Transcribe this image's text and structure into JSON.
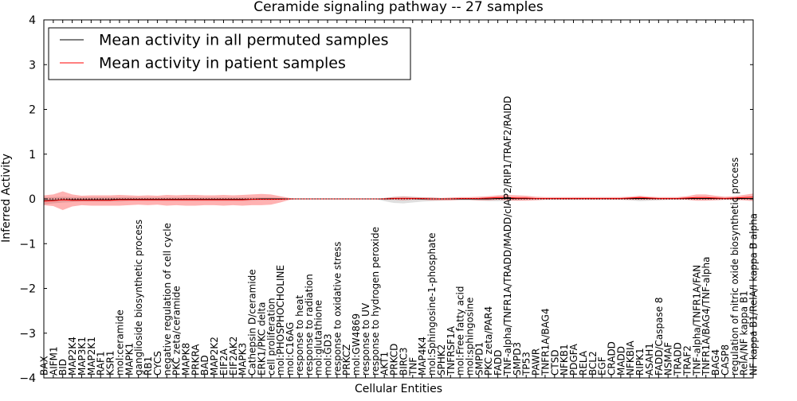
{
  "chart_data": {
    "type": "line",
    "title": "Ceramide signaling pathway -- 27 samples",
    "xlabel": "Cellular Entities",
    "ylabel": "Inferred Activity",
    "ylim": [
      -4,
      4
    ],
    "yticks": [
      4,
      3,
      2,
      1,
      0,
      -1,
      -2,
      -3,
      -4
    ],
    "ytick_labels": [
      "4",
      "3",
      "2",
      "1",
      "0",
      "−1",
      "−2",
      "−3",
      "−4"
    ],
    "legend": {
      "position": "upper-left",
      "entries": [
        {
          "label": "Mean activity in all permuted samples",
          "color": "#000000"
        },
        {
          "label": "Mean activity in patient samples",
          "color": "#ff0000"
        }
      ]
    },
    "categories": [
      "BAX",
      "AIFM1",
      "BID",
      "MAP2K4",
      "MAP3K1",
      "MAP2K1",
      "RAF1",
      "KSR1",
      "mol:ceramide",
      "MAPK1",
      "ganglioside biosynthetic process",
      "RB1",
      "CYCS",
      "negative regulation of cell cycle",
      "PKC zeta/ceramide",
      "MAPK8",
      "PRKRA",
      "BAD",
      "MAP2K2",
      "EIF2A",
      "EIF2AK2",
      "MAPK3",
      "Cathepsin D/ceramide",
      "ERK1/PKC delta",
      "cell proliferation",
      "mol:PHOSPHOCHOLINE",
      "mol:C16AG",
      "response to heat",
      "response to radiation",
      "mol:glutathione",
      "mol:GD3",
      "response to oxidative stress",
      "PRKCZ",
      "mol:GW4869",
      "response to UV",
      "response to hydrogen peroxide",
      "AKT1",
      "PRKCD",
      "BIRC3",
      "TNF",
      "MAP4K4",
      "mol:Sphingosine-1-phosphate",
      "SPHK2",
      "TNFRSF1A",
      "mol:Free fatty acid",
      "mol:sphingosine",
      "SMPD1",
      "PKC zeta/PAR4",
      "FADD",
      "TNF-alpha/TNFR1A/TRADD/MADD/cIAP2/RIP1/TRAF2/RAIDD",
      "SMPD3",
      "TP53",
      "PAWR",
      "TNFR1A/BAG4",
      "CTSD",
      "NFKB1",
      "PDGFA",
      "RELA",
      "BCL2",
      "EGF",
      "CRADD",
      "MADD",
      "NFKBIA",
      "RIPK1",
      "ASAH1",
      "FADD/Caspase 8",
      "NSMAF",
      "TRADD",
      "TRAF2",
      "TNF-alpha/TNFR1A/FAN",
      "TNFR1A/BAG4/TNF-alpha",
      "BAG4",
      "CASP8",
      "regulation of nitric oxide biosynthetic process",
      "RelA/NF kappa B1",
      "NF kappa B1/RelA/I kappa B alpha"
    ],
    "series": [
      {
        "name": "Mean activity in all permuted samples",
        "color": "#000000",
        "values": [
          -0.04,
          -0.03,
          -0.02,
          -0.02,
          -0.02,
          -0.02,
          -0.02,
          -0.02,
          -0.01,
          -0.01,
          -0.01,
          -0.01,
          -0.01,
          -0.01,
          -0.01,
          -0.01,
          -0.01,
          -0.01,
          -0.01,
          -0.01,
          -0.01,
          -0.01,
          -0.01,
          0.0,
          0.0,
          0.0,
          0.0,
          0.0,
          0.0,
          0.0,
          0.0,
          0.0,
          0.0,
          0.0,
          0.0,
          0.0,
          0.0,
          0.01,
          0.01,
          0.01,
          0.0,
          0.0,
          0.0,
          0.0,
          0.0,
          0.0,
          0.0,
          0.0,
          0.01,
          0.01,
          0.01,
          0.01,
          0.01,
          0.01,
          0.01,
          0.01,
          0.01,
          0.01,
          0.01,
          0.01,
          0.01,
          0.01,
          0.01,
          0.01,
          0.01,
          0.01,
          0.01,
          0.01,
          0.01,
          0.01,
          0.01,
          0.01,
          0.01,
          0.01,
          0.01,
          0.01
        ],
        "band_upper": [
          0.04,
          0.04,
          0.05,
          0.04,
          0.04,
          0.04,
          0.04,
          0.04,
          0.04,
          0.04,
          0.03,
          0.03,
          0.03,
          0.03,
          0.03,
          0.03,
          0.03,
          0.03,
          0.03,
          0.03,
          0.03,
          0.03,
          0.03,
          0.03,
          0.03,
          0.02,
          0.01,
          0.0,
          0.0,
          0.0,
          0.0,
          0.0,
          0.0,
          0.0,
          0.0,
          0.0,
          0.02,
          0.05,
          0.06,
          0.05,
          0.04,
          0.03,
          0.02,
          0.02,
          0.02,
          0.02,
          0.02,
          0.03,
          0.03,
          0.03,
          0.03,
          0.02,
          0.02,
          0.02,
          0.02,
          0.02,
          0.02,
          0.02,
          0.02,
          0.02,
          0.02,
          0.02,
          0.02,
          0.02,
          0.02,
          0.02,
          0.02,
          0.02,
          0.02,
          0.02,
          0.02,
          0.03,
          0.03,
          0.02,
          0.02,
          0.02
        ],
        "band_lower": [
          -0.12,
          -0.1,
          -0.08,
          -0.07,
          -0.06,
          -0.06,
          -0.06,
          -0.06,
          -0.06,
          -0.05,
          -0.05,
          -0.05,
          -0.05,
          -0.05,
          -0.05,
          -0.05,
          -0.05,
          -0.05,
          -0.05,
          -0.05,
          -0.05,
          -0.05,
          -0.04,
          -0.03,
          -0.03,
          -0.02,
          -0.01,
          0.0,
          0.0,
          0.0,
          0.0,
          0.0,
          0.0,
          0.0,
          0.0,
          0.0,
          -0.05,
          -0.09,
          -0.1,
          -0.08,
          -0.06,
          -0.05,
          -0.04,
          -0.03,
          -0.03,
          -0.03,
          -0.04,
          -0.05,
          -0.05,
          -0.04,
          -0.03,
          -0.02,
          -0.02,
          -0.02,
          -0.02,
          -0.02,
          -0.02,
          -0.02,
          -0.02,
          -0.02,
          -0.02,
          -0.02,
          -0.03,
          -0.05,
          -0.04,
          -0.03,
          -0.02,
          -0.02,
          -0.02,
          -0.02,
          -0.02,
          -0.02,
          -0.02,
          -0.02,
          -0.02,
          -0.02
        ]
      },
      {
        "name": "Mean activity in patient samples",
        "color": "#ff0000",
        "values": [
          -0.05,
          -0.04,
          -0.02,
          -0.03,
          -0.03,
          -0.03,
          -0.03,
          -0.03,
          -0.02,
          -0.02,
          -0.02,
          -0.02,
          -0.02,
          -0.02,
          -0.02,
          -0.02,
          -0.02,
          -0.02,
          -0.02,
          -0.02,
          -0.02,
          -0.02,
          -0.01,
          -0.01,
          -0.01,
          -0.01,
          0.0,
          0.0,
          0.0,
          0.0,
          0.0,
          0.0,
          0.0,
          0.0,
          0.0,
          0.0,
          0.0,
          0.01,
          0.01,
          0.01,
          0.01,
          0.0,
          0.0,
          0.0,
          0.01,
          0.01,
          0.01,
          0.02,
          0.03,
          0.03,
          0.02,
          0.02,
          0.01,
          0.01,
          0.01,
          0.01,
          0.01,
          0.01,
          0.01,
          0.01,
          0.01,
          0.01,
          0.02,
          0.03,
          0.02,
          0.01,
          0.01,
          0.01,
          0.02,
          0.03,
          0.03,
          0.02,
          0.01,
          0.02,
          0.03,
          0.04
        ],
        "band_upper": [
          0.08,
          0.1,
          0.17,
          0.1,
          0.07,
          0.08,
          0.08,
          0.08,
          0.09,
          0.08,
          0.07,
          0.08,
          0.07,
          0.09,
          0.08,
          0.09,
          0.09,
          0.08,
          0.08,
          0.09,
          0.08,
          0.09,
          0.1,
          0.11,
          0.1,
          0.06,
          0.02,
          0.0,
          0.0,
          0.0,
          0.0,
          0.0,
          0.0,
          0.0,
          0.0,
          0.0,
          0.02,
          0.04,
          0.05,
          0.04,
          0.03,
          0.03,
          0.02,
          0.03,
          0.04,
          0.04,
          0.05,
          0.06,
          0.08,
          0.09,
          0.08,
          0.07,
          0.05,
          0.04,
          0.04,
          0.04,
          0.04,
          0.04,
          0.04,
          0.04,
          0.04,
          0.04,
          0.05,
          0.07,
          0.05,
          0.04,
          0.04,
          0.04,
          0.06,
          0.1,
          0.1,
          0.07,
          0.05,
          0.06,
          0.09,
          0.12
        ],
        "band_lower": [
          -0.14,
          -0.16,
          -0.25,
          -0.17,
          -0.14,
          -0.15,
          -0.15,
          -0.15,
          -0.15,
          -0.14,
          -0.13,
          -0.14,
          -0.13,
          -0.15,
          -0.14,
          -0.15,
          -0.15,
          -0.14,
          -0.14,
          -0.15,
          -0.14,
          -0.15,
          -0.14,
          -0.14,
          -0.13,
          -0.08,
          -0.02,
          0.0,
          0.0,
          0.0,
          0.0,
          0.0,
          0.0,
          0.0,
          0.0,
          0.0,
          -0.02,
          -0.02,
          -0.03,
          -0.02,
          -0.02,
          -0.03,
          -0.03,
          -0.03,
          -0.02,
          -0.02,
          -0.03,
          -0.03,
          -0.02,
          -0.03,
          -0.04,
          -0.04,
          -0.03,
          -0.02,
          -0.02,
          -0.02,
          -0.02,
          -0.02,
          -0.02,
          -0.02,
          -0.02,
          -0.02,
          -0.02,
          -0.02,
          -0.02,
          -0.02,
          -0.02,
          -0.02,
          -0.02,
          -0.04,
          -0.04,
          -0.03,
          -0.02,
          -0.02,
          -0.03,
          -0.05
        ]
      }
    ]
  }
}
